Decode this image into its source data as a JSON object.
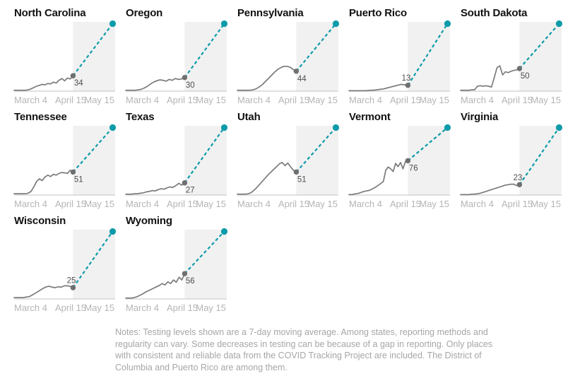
{
  "notes": {
    "lines": [
      "Notes: Testing levels shown are a 7-day moving average. Among states, reporting methods and",
      "regularity can vary. Some decreases in testing can be because of a gap in reporting. Only places",
      "with consistent and reliable data from the COVID Tracking Project are included. The District of",
      "Columbia and Puerto Rico are among them."
    ]
  },
  "chart_data": {
    "type": "line",
    "layout": "small-multiples-grid-5-columns",
    "x_tick_labels": [
      "March 4",
      "April 15",
      "May 15"
    ],
    "x_range": [
      "March 4",
      "May 15"
    ],
    "observed_data_ends": "April 15",
    "projection_region": [
      "April 15",
      "May 15"
    ],
    "y_axis_max_estimate": 150,
    "projection_end_value_estimate": 150,
    "grid": false,
    "legend": false,
    "colors": {
      "series": "#7b7b7b",
      "series_dot": "#6f6f6f",
      "projection": "#0d9baa",
      "shade": "#f1f1f1",
      "axis": "#c3c3c3",
      "tick_label": "#b5b5b5",
      "value_label": "#4f4f4f",
      "title": "#121212",
      "notes": "#a6a6a6"
    },
    "charts": [
      {
        "state": "North Carolina",
        "current_value": 34,
        "value_label": "34",
        "label_position": "below",
        "series": [
          2,
          2,
          2,
          2,
          2,
          3,
          5,
          8,
          11,
          13,
          15,
          14,
          17,
          16,
          20,
          18,
          24,
          28,
          23,
          29,
          27,
          34
        ]
      },
      {
        "state": "Oregon",
        "current_value": 30,
        "value_label": "30",
        "label_position": "below",
        "series": [
          2,
          2,
          2,
          2,
          3,
          4,
          7,
          11,
          16,
          20,
          23,
          25,
          24,
          22,
          26,
          24,
          28,
          26,
          27,
          30
        ]
      },
      {
        "state": "Pennsylvania",
        "current_value": 44,
        "value_label": "44",
        "label_position": "below",
        "series": [
          2,
          2,
          2,
          2,
          2,
          3,
          5,
          9,
          14,
          21,
          28,
          35,
          42,
          48,
          52,
          55,
          55,
          53,
          48,
          44
        ]
      },
      {
        "state": "Puerto Rico",
        "current_value": 13,
        "value_label": "13",
        "label_position": "above",
        "series": [
          1,
          1,
          1,
          1,
          1,
          1,
          2,
          2,
          3,
          4,
          5,
          7,
          9,
          11,
          13,
          15,
          14,
          13
        ]
      },
      {
        "state": "South Dakota",
        "current_value": 50,
        "value_label": "50",
        "label_position": "below",
        "series": [
          2,
          2,
          2,
          2,
          3,
          3,
          11,
          12,
          11,
          12,
          11,
          9,
          30,
          52,
          56,
          36,
          43,
          41,
          44,
          46,
          47,
          50
        ]
      },
      {
        "state": "Tennessee",
        "current_value": 51,
        "value_label": "51",
        "label_position": "below",
        "series": [
          3,
          3,
          3,
          3,
          3,
          4,
          8,
          18,
          30,
          36,
          32,
          40,
          44,
          41,
          46,
          44,
          48,
          50,
          49,
          48,
          55,
          51
        ]
      },
      {
        "state": "Texas",
        "current_value": 27,
        "value_label": "27",
        "label_position": "below",
        "series": [
          2,
          2,
          2,
          3,
          3,
          4,
          5,
          7,
          8,
          10,
          9,
          12,
          14,
          13,
          16,
          18,
          17,
          21,
          26,
          22,
          27
        ]
      },
      {
        "state": "Utah",
        "current_value": 51,
        "value_label": "51",
        "label_position": "below",
        "series": [
          2,
          2,
          2,
          2,
          3,
          6,
          11,
          17,
          24,
          31,
          38,
          45,
          51,
          57,
          63,
          69,
          72,
          65,
          71,
          62,
          55,
          51
        ]
      },
      {
        "state": "Vermont",
        "current_value": 76,
        "value_label": "76",
        "label_position": "below",
        "series": [
          1,
          1,
          2,
          3,
          4,
          6,
          8,
          9,
          10,
          12,
          15,
          18,
          22,
          26,
          30,
          55,
          62,
          58,
          52,
          70,
          63,
          72,
          58,
          74,
          76
        ]
      },
      {
        "state": "Virginia",
        "current_value": 23,
        "value_label": "23",
        "label_position": "above",
        "series": [
          1,
          1,
          1,
          1,
          2,
          2,
          3,
          4,
          6,
          8,
          10,
          12,
          14,
          16,
          18,
          20,
          22,
          23,
          24,
          24,
          21,
          23
        ]
      },
      {
        "state": "Wisconsin",
        "current_value": 25,
        "value_label": "25",
        "label_position": "above",
        "series": [
          3,
          3,
          3,
          3,
          4,
          5,
          8,
          12,
          16,
          20,
          24,
          27,
          28,
          26,
          25,
          27,
          26,
          29,
          29,
          28,
          25
        ]
      },
      {
        "state": "Wyoming",
        "current_value": 56,
        "value_label": "56",
        "label_position": "below",
        "series": [
          2,
          2,
          2,
          3,
          5,
          8,
          11,
          15,
          18,
          21,
          24,
          27,
          30,
          34,
          31,
          38,
          34,
          42,
          37,
          48,
          42,
          56
        ]
      }
    ]
  }
}
